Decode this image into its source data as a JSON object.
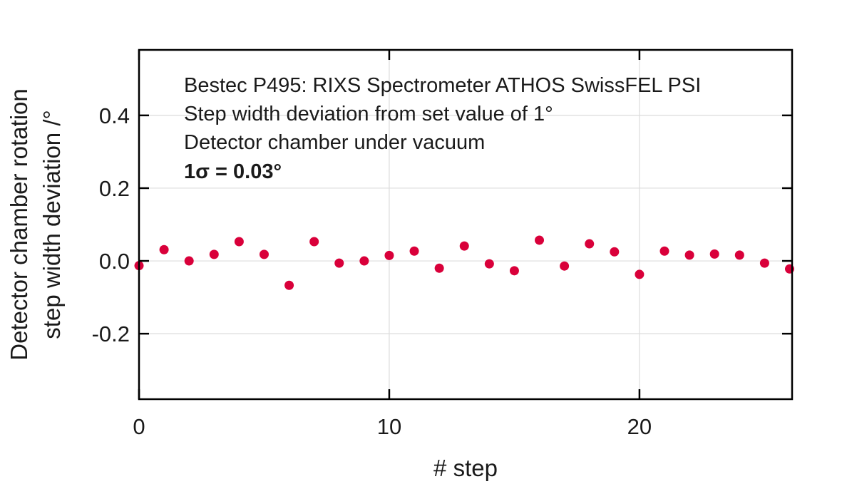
{
  "chart_data": {
    "type": "scatter",
    "title": "",
    "xlabel": "# step",
    "ylabel_lines": [
      "Detector chamber rotation",
      "step width deviation /°"
    ],
    "xlim": [
      0,
      26.1
    ],
    "ylim": [
      -0.38,
      0.58
    ],
    "xticks": [
      0,
      10,
      20
    ],
    "xtick_labels": [
      "0",
      "10",
      "20"
    ],
    "yticks": [
      0.4,
      0.2,
      0.0,
      -0.2
    ],
    "ytick_labels": [
      "0.4",
      "0.2",
      "0.0",
      "-0.2"
    ],
    "grid": true,
    "legend": null,
    "marker_color": "#d9003a",
    "series": [
      {
        "name": "step width deviation",
        "x": [
          0,
          1,
          2,
          3,
          4,
          5,
          6,
          7,
          8,
          9,
          10,
          11,
          12,
          13,
          14,
          15,
          16,
          17,
          18,
          19,
          20,
          21,
          22,
          23,
          24,
          25,
          26
        ],
        "y": [
          -0.013,
          0.031,
          0.0,
          0.018,
          0.053,
          0.018,
          -0.067,
          0.053,
          -0.006,
          0.0,
          0.015,
          0.027,
          -0.02,
          0.041,
          -0.008,
          -0.027,
          0.057,
          -0.014,
          0.047,
          0.025,
          -0.037,
          0.027,
          0.016,
          0.019,
          0.016,
          -0.006,
          -0.022
        ]
      }
    ],
    "annotations": [
      {
        "text": "Bestec P495: RIXS Spectrometer ATHOS SwissFEL PSI",
        "bold": false
      },
      {
        "text": "Step width deviation from set value of  1°",
        "bold": false
      },
      {
        "text": "Detector chamber under vacuum",
        "bold": false
      },
      {
        "text": "1σ = 0.03°",
        "bold": true
      }
    ]
  }
}
